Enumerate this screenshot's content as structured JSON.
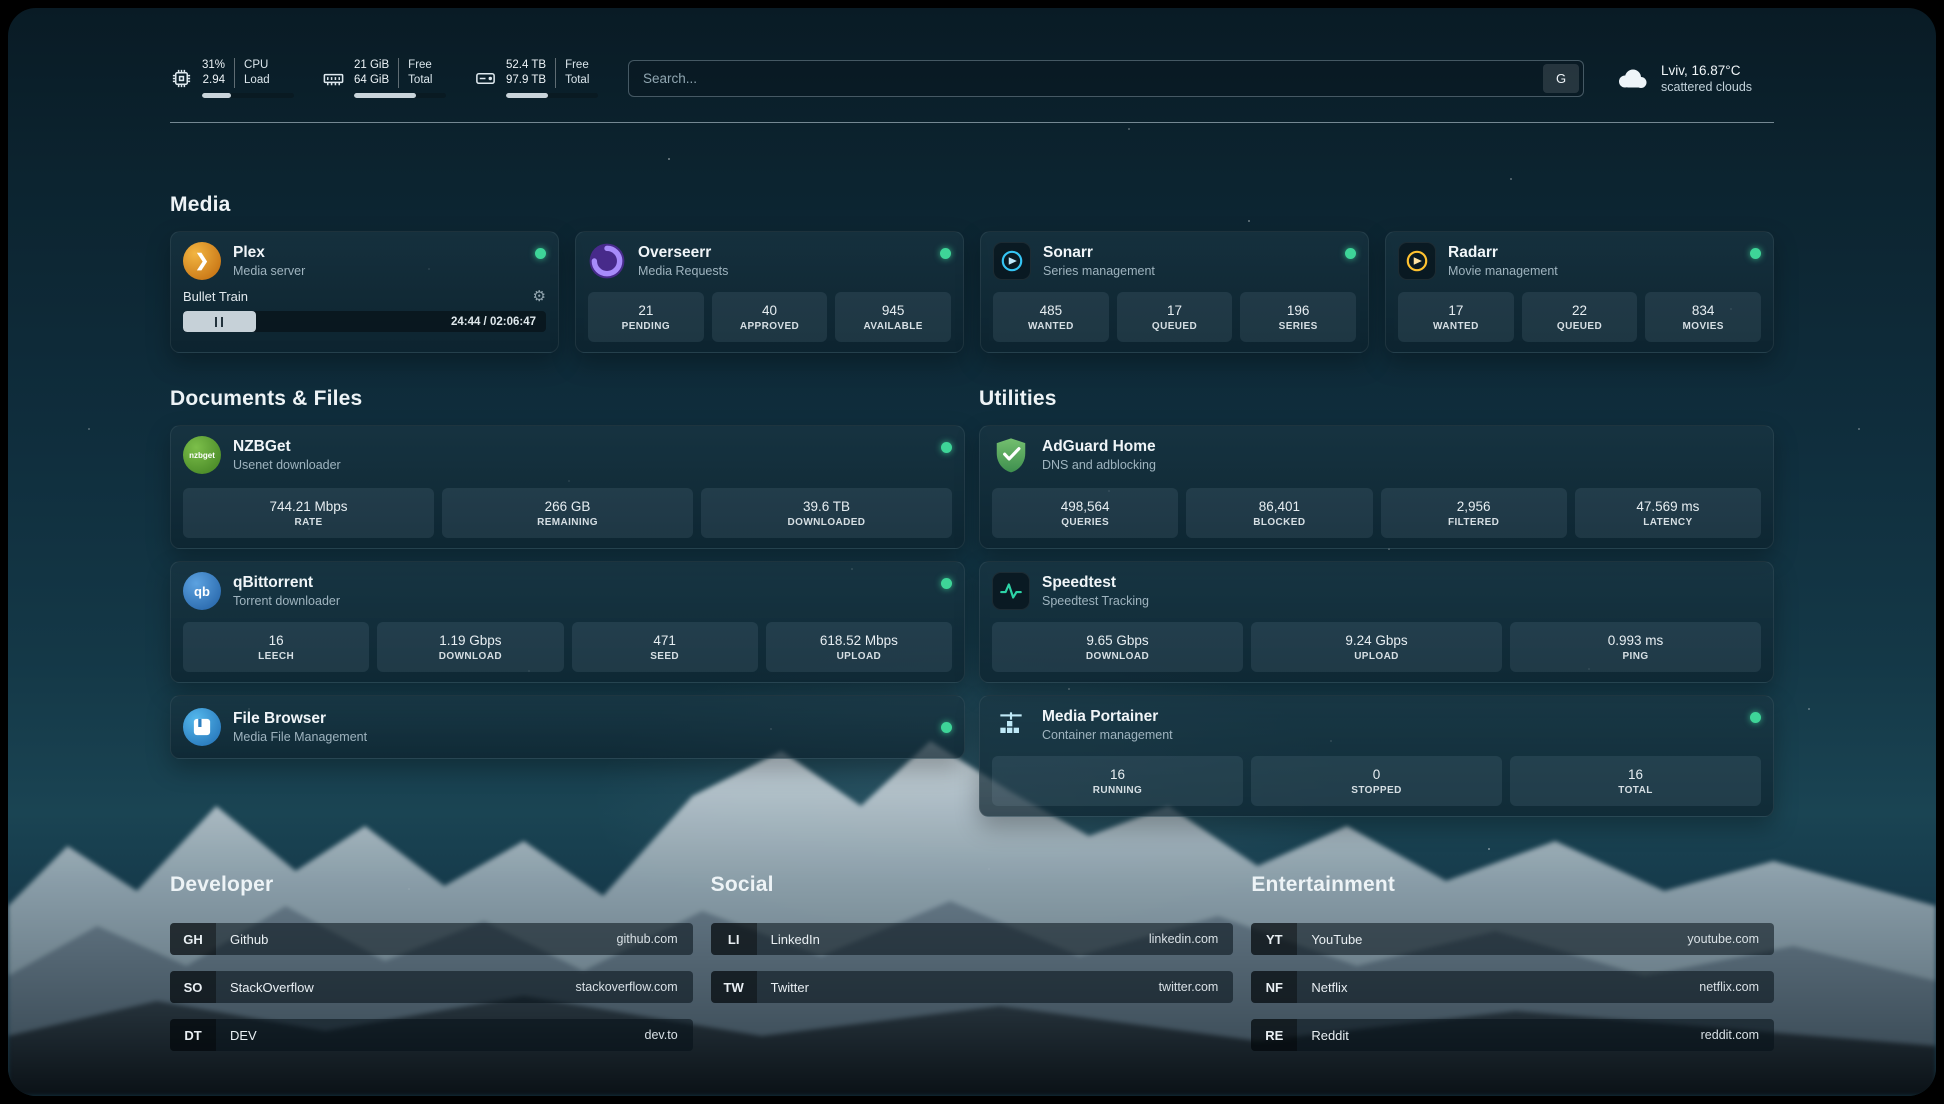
{
  "topbar": {
    "cpu": {
      "value_top": "31%",
      "value_bottom": "2.94",
      "label_top": "CPU",
      "label_bottom": "Load",
      "progress_pct": 31
    },
    "ram": {
      "value_top": "21 GiB",
      "value_bottom": "64 GiB",
      "label_top": "Free",
      "label_bottom": "Total",
      "progress_pct": 67
    },
    "disk": {
      "value_top": "52.4 TB",
      "value_bottom": "97.9 TB",
      "label_top": "Free",
      "label_bottom": "Total",
      "progress_pct": 46
    },
    "search": {
      "placeholder": "Search...",
      "button_label": "G"
    },
    "weather": {
      "location": "Lviv, 16.87°C",
      "condition": "scattered clouds"
    }
  },
  "sections": {
    "media": {
      "title": "Media"
    },
    "documents": {
      "title": "Documents & Files"
    },
    "utilities": {
      "title": "Utilities"
    },
    "developer": {
      "title": "Developer"
    },
    "social": {
      "title": "Social"
    },
    "entertainment": {
      "title": "Entertainment"
    }
  },
  "apps": {
    "plex": {
      "name": "Plex",
      "desc": "Media server",
      "now_playing": "Bullet Train",
      "progress_time": "24:44 / 02:06:47",
      "progress_pct": 20
    },
    "overseerr": {
      "name": "Overseerr",
      "desc": "Media Requests",
      "stats": [
        {
          "value": "21",
          "label": "PENDING"
        },
        {
          "value": "40",
          "label": "APPROVED"
        },
        {
          "value": "945",
          "label": "AVAILABLE"
        }
      ]
    },
    "sonarr": {
      "name": "Sonarr",
      "desc": "Series management",
      "stats": [
        {
          "value": "485",
          "label": "WANTED"
        },
        {
          "value": "17",
          "label": "QUEUED"
        },
        {
          "value": "196",
          "label": "SERIES"
        }
      ]
    },
    "radarr": {
      "name": "Radarr",
      "desc": "Movie management",
      "stats": [
        {
          "value": "17",
          "label": "WANTED"
        },
        {
          "value": "22",
          "label": "QUEUED"
        },
        {
          "value": "834",
          "label": "MOVIES"
        }
      ]
    },
    "nzbget": {
      "name": "NZBGet",
      "desc": "Usenet downloader",
      "stats": [
        {
          "value": "744.21 Mbps",
          "label": "RATE"
        },
        {
          "value": "266 GB",
          "label": "REMAINING"
        },
        {
          "value": "39.6 TB",
          "label": "DOWNLOADED"
        }
      ]
    },
    "adguard": {
      "name": "AdGuard Home",
      "desc": "DNS and adblocking",
      "stats": [
        {
          "value": "498,564",
          "label": "QUERIES"
        },
        {
          "value": "86,401",
          "label": "BLOCKED"
        },
        {
          "value": "2,956",
          "label": "FILTERED"
        },
        {
          "value": "47.569 ms",
          "label": "LATENCY"
        }
      ]
    },
    "qbittorrent": {
      "name": "qBittorrent",
      "desc": "Torrent downloader",
      "stats": [
        {
          "value": "16",
          "label": "LEECH"
        },
        {
          "value": "1.19 Gbps",
          "label": "DOWNLOAD"
        },
        {
          "value": "471",
          "label": "SEED"
        },
        {
          "value": "618.52 Mbps",
          "label": "UPLOAD"
        }
      ]
    },
    "speedtest": {
      "name": "Speedtest",
      "desc": "Speedtest Tracking",
      "stats": [
        {
          "value": "9.65 Gbps",
          "label": "DOWNLOAD"
        },
        {
          "value": "9.24 Gbps",
          "label": "UPLOAD"
        },
        {
          "value": "0.993 ms",
          "label": "PING"
        }
      ]
    },
    "filebrowser": {
      "name": "File Browser",
      "desc": "Media File Management"
    },
    "portainer": {
      "name": "Media Portainer",
      "desc": "Container management",
      "stats": [
        {
          "value": "16",
          "label": "RUNNING"
        },
        {
          "value": "0",
          "label": "STOPPED"
        },
        {
          "value": "16",
          "label": "TOTAL"
        }
      ]
    }
  },
  "bookmarks": {
    "developer": [
      {
        "abbr": "GH",
        "name": "Github",
        "url": "github.com"
      },
      {
        "abbr": "SO",
        "name": "StackOverflow",
        "url": "stackoverflow.com"
      },
      {
        "abbr": "DT",
        "name": "DEV",
        "url": "dev.to"
      }
    ],
    "social": [
      {
        "abbr": "LI",
        "name": "LinkedIn",
        "url": "linkedin.com"
      },
      {
        "abbr": "TW",
        "name": "Twitter",
        "url": "twitter.com"
      }
    ],
    "entertainment": [
      {
        "abbr": "YT",
        "name": "YouTube",
        "url": "youtube.com"
      },
      {
        "abbr": "NF",
        "name": "Netflix",
        "url": "netflix.com"
      },
      {
        "abbr": "RE",
        "name": "Reddit",
        "url": "reddit.com"
      }
    ]
  },
  "icons": {
    "plex_glyph": "❯",
    "gear_glyph": "⚙",
    "qbittorrent_glyph": "qb",
    "nzbget_glyph": "nzbget"
  },
  "colors": {
    "status_online": "#3ed598",
    "plex_gold": "#e5a00d",
    "overseerr_purple": "#6d5bd0",
    "sonarr_blue": "#35c5f4",
    "radarr_gold": "#ffc230",
    "nzbget_green": "#5f9e37",
    "qbittorrent_blue": "#4a90d9",
    "adguard_green": "#67b279",
    "speedtest_pulse": "#2dd4a7",
    "filebrowser_blue": "#3da8e0",
    "portainer_blue": "#bfe9f7"
  }
}
